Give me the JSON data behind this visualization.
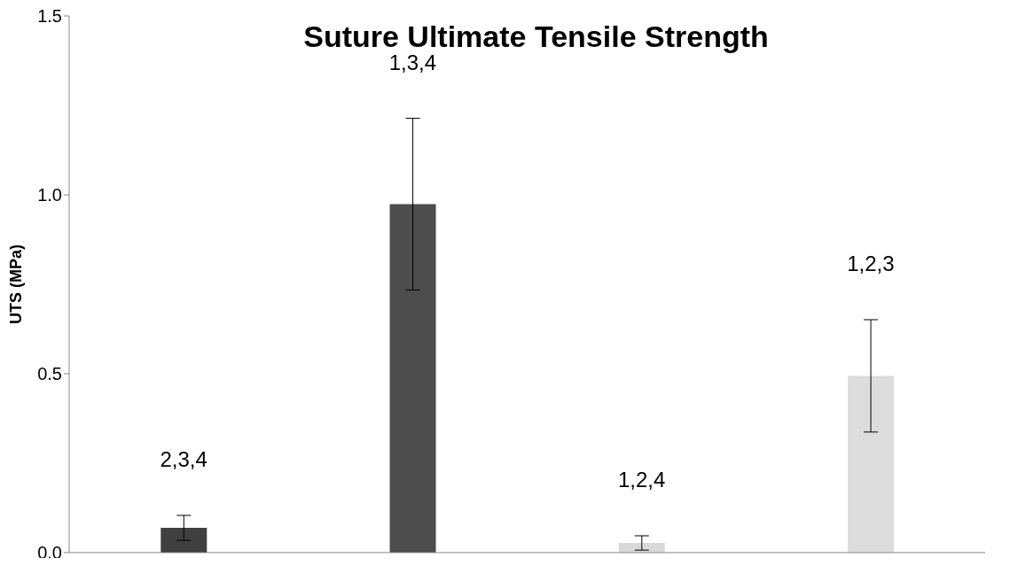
{
  "chart_data": {
    "type": "bar",
    "title": "Suture Ultimate Tensile Strength",
    "ylabel": "UTS (MPa)",
    "categories": [
      null,
      null,
      null,
      null
    ],
    "values": [
      0.069,
      0.974,
      0.027,
      0.494
    ],
    "colors": [
      "#404040",
      "#4d4d4d",
      "#d9d9d9",
      "#dcdcdc"
    ],
    "errors": [
      0.035,
      0.24,
      0.02,
      0.157
    ],
    "ylim": [
      0,
      1.5
    ],
    "yticks": [
      {
        "value": 0,
        "label": "0.0"
      },
      {
        "value": 0.5,
        "label": "0.5"
      },
      {
        "value": 1,
        "label": "1.0"
      },
      {
        "value": 1.5,
        "label": "1.5"
      }
    ],
    "annotations": [
      "2,3,4",
      "1,3,4",
      "1,2,4",
      "1,2,3"
    ]
  }
}
